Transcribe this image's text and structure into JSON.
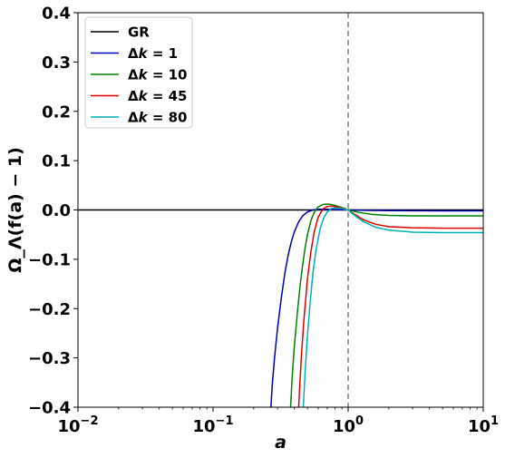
{
  "chart_data": {
    "type": "line",
    "xscale": "log",
    "xlim": [
      0.01,
      10
    ],
    "ylim": [
      -0.4,
      0.4
    ],
    "xlabel": "a",
    "ylabel": "Ω_Λ(f(a) − 1)",
    "grid": false,
    "legend_position": "top-left",
    "x_tick_labels": [
      {
        "base": "10",
        "exp": "−2"
      },
      {
        "base": "10",
        "exp": "−1"
      },
      {
        "base": "10",
        "exp": "0"
      },
      {
        "base": "10",
        "exp": "1"
      }
    ],
    "y_ticks": [
      -0.4,
      -0.3,
      -0.2,
      -0.1,
      0.0,
      0.1,
      0.2,
      0.3,
      0.4
    ],
    "y_tick_labels": [
      "−0.4",
      "−0.3",
      "−0.2",
      "−0.1",
      "0.0",
      "0.1",
      "0.2",
      "0.3",
      "0.4"
    ],
    "reference_line": {
      "x": 1,
      "style": "dashed",
      "color": "#808080"
    },
    "series": [
      {
        "name": "GR",
        "prefix": "",
        "var": "",
        "value": "",
        "color": "#000000",
        "x": [
          0.01,
          0.1,
          1,
          10
        ],
        "y": [
          0,
          0,
          0,
          0
        ]
      },
      {
        "name": "Δk = 1",
        "prefix": "Δ",
        "var": "k",
        "value": " = 1",
        "color": "#0000b0",
        "x": [
          0.268,
          0.275,
          0.285,
          0.3,
          0.32,
          0.34,
          0.36,
          0.38,
          0.4,
          0.43,
          0.46,
          0.5,
          0.55,
          0.6,
          0.7,
          0.8,
          0.9,
          1,
          1.3,
          2,
          5,
          10
        ],
        "y": [
          -0.4,
          -0.35,
          -0.3,
          -0.24,
          -0.178,
          -0.128,
          -0.091,
          -0.064,
          -0.044,
          -0.024,
          -0.012,
          -0.004,
          0.0,
          0.0015,
          0.0015,
          0.001,
          0.0005,
          0.0,
          -0.0008,
          -0.0015,
          -0.0018,
          -0.0018
        ]
      },
      {
        "name": "Δk = 10",
        "prefix": "Δ",
        "var": "k",
        "value": " = 10",
        "color": "#008000",
        "x": [
          0.375,
          0.385,
          0.4,
          0.42,
          0.44,
          0.46,
          0.48,
          0.5,
          0.53,
          0.56,
          0.6,
          0.65,
          0.7,
          0.75,
          0.8,
          0.9,
          1,
          1.2,
          1.5,
          2,
          3,
          5,
          10
        ],
        "y": [
          -0.4,
          -0.34,
          -0.275,
          -0.21,
          -0.155,
          -0.112,
          -0.077,
          -0.05,
          -0.022,
          -0.005,
          0.006,
          0.011,
          0.012,
          0.011,
          0.009,
          0.005,
          0.0,
          -0.005,
          -0.009,
          -0.011,
          -0.012,
          -0.012,
          -0.012
        ]
      },
      {
        "name": "Δk = 45",
        "prefix": "Δ",
        "var": "k",
        "value": " = 45",
        "color": "#e00000",
        "x": [
          0.43,
          0.45,
          0.47,
          0.5,
          0.53,
          0.56,
          0.6,
          0.65,
          0.7,
          0.75,
          0.8,
          0.9,
          1,
          1.1,
          1.3,
          1.6,
          2,
          3,
          5,
          10
        ],
        "y": [
          -0.4,
          -0.3,
          -0.225,
          -0.14,
          -0.085,
          -0.045,
          -0.015,
          0.002,
          0.007,
          0.008,
          0.007,
          0.004,
          0.0,
          -0.008,
          -0.02,
          -0.029,
          -0.034,
          -0.036,
          -0.037,
          -0.037
        ]
      },
      {
        "name": "Δk = 80",
        "prefix": "Δ",
        "var": "k",
        "value": " = 80",
        "color": "#00b0b0",
        "x": [
          0.465,
          0.48,
          0.5,
          0.52,
          0.55,
          0.58,
          0.62,
          0.66,
          0.7,
          0.75,
          0.8,
          0.9,
          1,
          1.1,
          1.3,
          1.6,
          2,
          3,
          5,
          10
        ],
        "y": [
          -0.4,
          -0.33,
          -0.255,
          -0.195,
          -0.125,
          -0.078,
          -0.038,
          -0.016,
          -0.004,
          0.003,
          0.004,
          0.003,
          0.0,
          -0.01,
          -0.024,
          -0.035,
          -0.041,
          -0.045,
          -0.046,
          -0.046
        ]
      }
    ]
  }
}
